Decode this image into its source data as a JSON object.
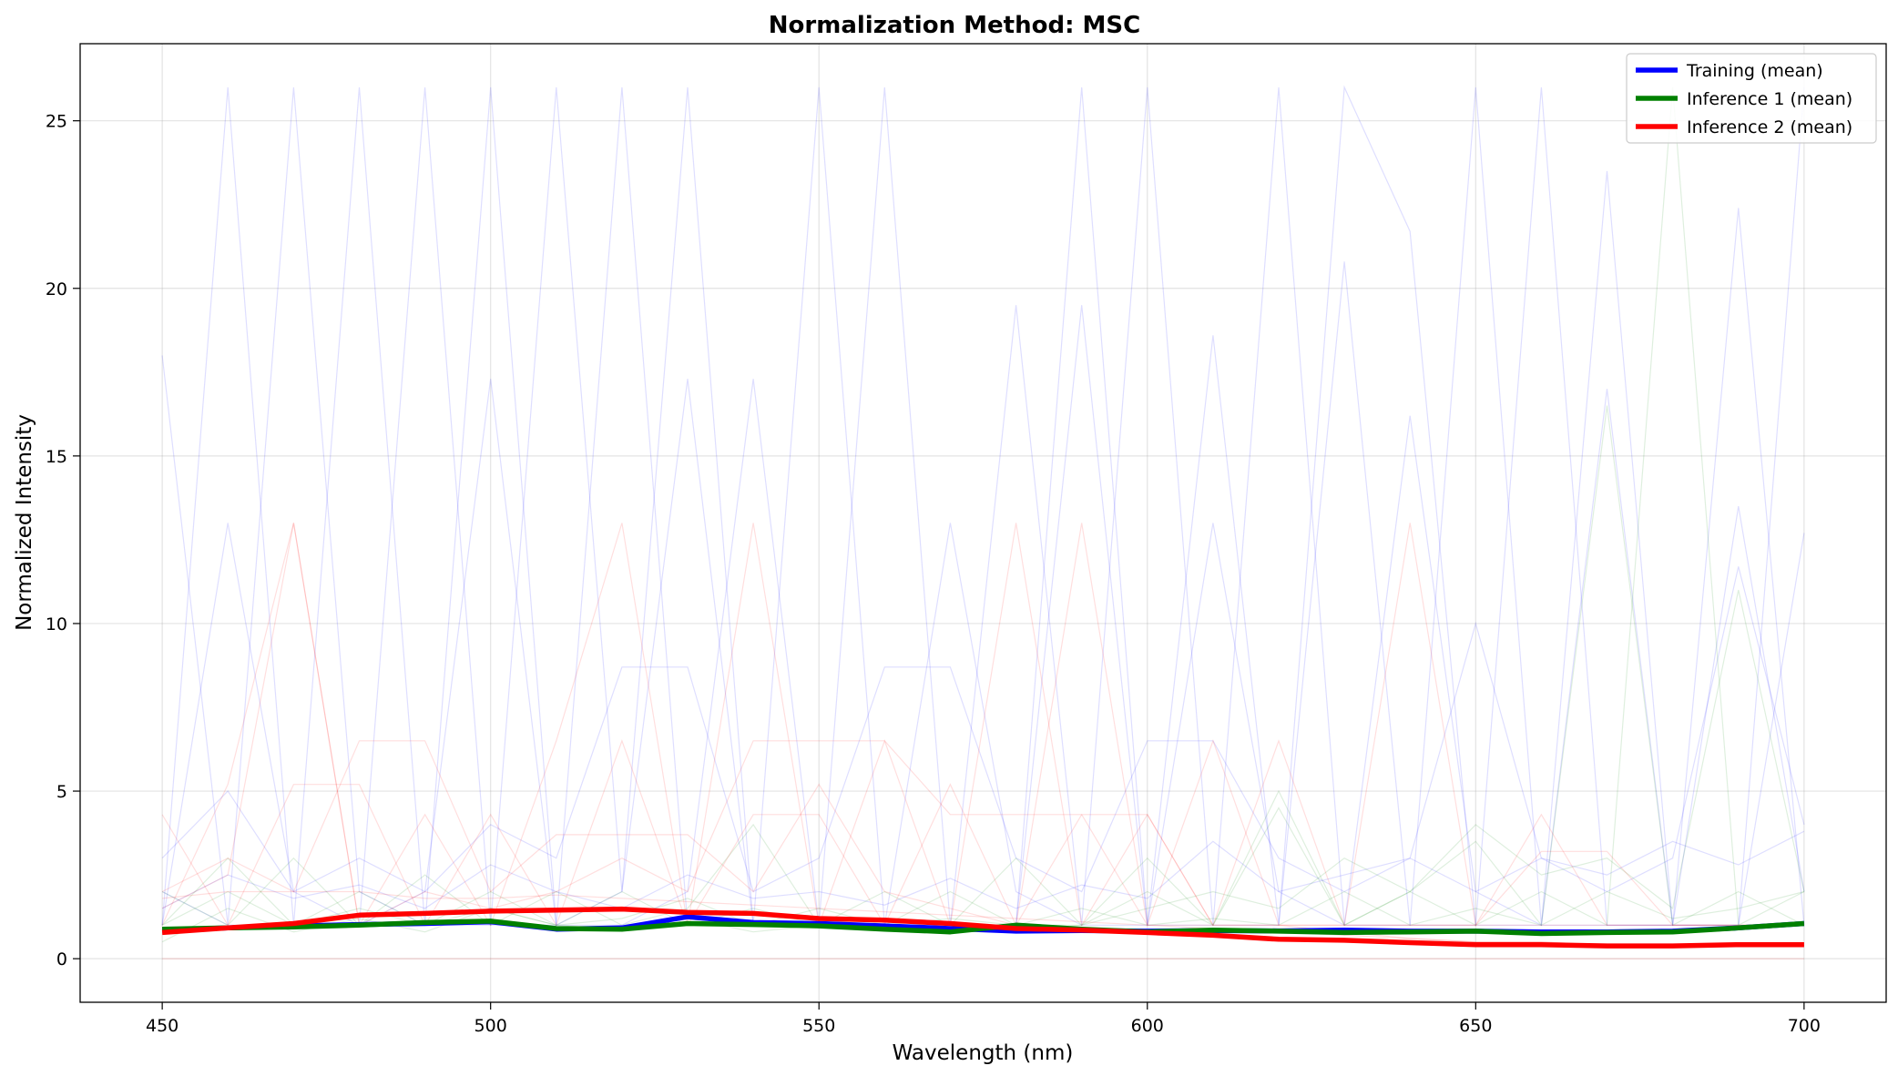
{
  "chart_data": {
    "type": "line",
    "title": "Normalization Method: MSC",
    "xlabel": "Wavelength (nm)",
    "ylabel": "Normalized Intensity",
    "xlim": [
      437.5,
      712.5
    ],
    "ylim": [
      -1.3,
      27.3
    ],
    "x_ticks": [
      450,
      500,
      550,
      600,
      650,
      700
    ],
    "y_ticks": [
      0,
      5,
      10,
      15,
      20,
      25
    ],
    "grid": true,
    "legend_position": "top-right",
    "x": [
      450,
      460,
      470,
      480,
      490,
      500,
      510,
      520,
      530,
      540,
      550,
      560,
      570,
      580,
      590,
      600,
      610,
      620,
      630,
      640,
      650,
      660,
      670,
      680,
      690,
      700
    ],
    "series": [
      {
        "name": "Training (mean)",
        "color": "#0000ff",
        "values": [
          0.85,
          0.92,
          0.98,
          1.02,
          1.05,
          1.1,
          0.88,
          0.92,
          1.25,
          1.08,
          1.05,
          0.98,
          0.9,
          0.82,
          0.84,
          0.82,
          0.84,
          0.83,
          0.85,
          0.82,
          0.82,
          0.8,
          0.8,
          0.82,
          0.92,
          1.05
        ]
      },
      {
        "name": "Inference 1 (mean)",
        "color": "#008000",
        "values": [
          0.88,
          0.92,
          0.95,
          1.0,
          1.08,
          1.12,
          0.9,
          0.88,
          1.05,
          1.02,
          0.98,
          0.88,
          0.8,
          1.0,
          0.88,
          0.8,
          0.85,
          0.82,
          0.78,
          0.8,
          0.82,
          0.75,
          0.78,
          0.8,
          0.92,
          1.05
        ]
      },
      {
        "name": "Inference 2 (mean)",
        "color": "#ff0000",
        "values": [
          0.78,
          0.92,
          1.05,
          1.3,
          1.35,
          1.42,
          1.45,
          1.48,
          1.38,
          1.35,
          1.2,
          1.15,
          1.05,
          0.9,
          0.85,
          0.78,
          0.7,
          0.58,
          0.55,
          0.48,
          0.42,
          0.42,
          0.38,
          0.38,
          0.42,
          0.42
        ]
      }
    ],
    "background_traces": [
      {
        "color": "#0000ff",
        "values": [
          18,
          1,
          26,
          2,
          1,
          26,
          1,
          2,
          26,
          1,
          26,
          1,
          1,
          1,
          26,
          1,
          1,
          1,
          26,
          21.7,
          1,
          1,
          1,
          1,
          22.4,
          1
        ]
      },
      {
        "color": "#0000ff",
        "values": [
          1,
          26,
          1,
          26,
          1,
          1,
          26,
          2,
          17.3,
          1,
          1,
          26,
          1,
          19.5,
          1,
          26,
          1,
          26,
          1,
          1,
          26,
          1,
          23.5,
          1,
          1,
          26
        ]
      },
      {
        "color": "#0000ff",
        "values": [
          2,
          1,
          1,
          1,
          26,
          1,
          1,
          26,
          1,
          1,
          1,
          1,
          1,
          1,
          19.5,
          1,
          18.6,
          1,
          20.8,
          1,
          1,
          26,
          1,
          1,
          1,
          12.7
        ]
      },
      {
        "color": "#0000ff",
        "values": [
          1,
          13,
          2,
          1,
          2,
          17.3,
          1,
          1,
          2,
          17.3,
          1,
          1,
          13,
          2,
          1,
          1,
          13,
          2,
          1,
          16.2,
          2,
          1,
          17,
          1,
          13.5,
          2
        ]
      },
      {
        "color": "#0000ff",
        "values": [
          3,
          5,
          2,
          3,
          2,
          4,
          3,
          8.7,
          8.7,
          2,
          3,
          8.7,
          8.7,
          3,
          2,
          6.5,
          6.5,
          3,
          2,
          3,
          10,
          3,
          2,
          3,
          11.7,
          4
        ]
      },
      {
        "color": "#0000ff",
        "values": [
          1.5,
          2.5,
          1.8,
          2.2,
          1.5,
          2.8,
          2,
          1.5,
          2.5,
          1.8,
          2,
          1.6,
          2.4,
          1.5,
          2.2,
          1.8,
          3.5,
          2,
          2.5,
          3,
          2,
          3,
          2.5,
          3.5,
          2.8,
          3.8
        ]
      },
      {
        "color": "#008000",
        "values": [
          1,
          2,
          1,
          1.5,
          1,
          2,
          1,
          1.2,
          1.8,
          1,
          1.5,
          1,
          1.2,
          1,
          1.5,
          1,
          1.2,
          1,
          2,
          1,
          1.5,
          1,
          2,
          1.2,
          1.5,
          2
        ]
      },
      {
        "color": "#008000",
        "values": [
          2,
          1,
          3,
          1,
          2.5,
          1,
          2,
          1,
          1.5,
          4,
          1,
          2,
          1,
          3,
          1,
          2,
          1,
          4.5,
          1,
          2,
          1,
          2,
          1,
          26,
          1,
          2
        ]
      },
      {
        "color": "#008000",
        "values": [
          1,
          3,
          1,
          2,
          1,
          1.5,
          1,
          2,
          1,
          1.5,
          1,
          1,
          2,
          1,
          1,
          3,
          1,
          5,
          1,
          2,
          3.5,
          1,
          16.5,
          1,
          2,
          1
        ]
      },
      {
        "color": "#008000",
        "values": [
          0.5,
          1.5,
          0.8,
          1.2,
          0.8,
          1.5,
          1,
          0.9,
          1.2,
          0.8,
          1,
          0.9,
          1.1,
          0.8,
          1,
          1.5,
          2,
          1.5,
          3,
          2,
          4,
          2.5,
          3,
          1.5,
          11,
          2
        ]
      },
      {
        "color": "#ff0000",
        "values": [
          1,
          5.2,
          13,
          1,
          4.3,
          1,
          6.5,
          13,
          1,
          13,
          1,
          6.5,
          1,
          13,
          1,
          4.3,
          1,
          6.5,
          1,
          13,
          1,
          4.3,
          1,
          1,
          1,
          1
        ]
      },
      {
        "color": "#ff0000",
        "values": [
          4.3,
          1,
          5.2,
          5.2,
          1,
          4.3,
          1,
          6.5,
          1,
          4.3,
          4.3,
          1,
          5.2,
          1,
          4.3,
          4.3,
          1,
          1,
          1,
          1,
          1,
          1,
          1,
          1,
          1,
          1
        ]
      },
      {
        "color": "#ff0000",
        "values": [
          2,
          3,
          2,
          6.5,
          6.5,
          2,
          3.7,
          3.7,
          3.7,
          2,
          5.2,
          2,
          1.5,
          1,
          13,
          1,
          1,
          1,
          1,
          1,
          1,
          3.2,
          3.2,
          1,
          1,
          1
        ]
      },
      {
        "color": "#ff0000",
        "values": [
          1.5,
          2.5,
          13,
          1,
          2,
          1.5,
          2,
          3,
          2,
          6.5,
          6.5,
          6.5,
          4.3,
          4.3,
          4.3,
          1,
          6.5,
          1,
          0.8,
          0.6,
          0.5,
          0.5,
          0.4,
          0.4,
          0.4,
          0.4
        ]
      },
      {
        "color": "#ff0000",
        "values": [
          1.8,
          2,
          2,
          2,
          1.8,
          1.8,
          1.9,
          1.8,
          1.7,
          1.6,
          1.5,
          1.4,
          1.3,
          1.2,
          1.1,
          1,
          0.9,
          0.8,
          0.7,
          0.6,
          0.5,
          0.5,
          0.4,
          0.4,
          0.4,
          0.4
        ]
      },
      {
        "color": "#ff0000",
        "values": [
          0,
          0,
          0,
          0,
          0,
          0,
          0,
          0,
          0,
          0,
          0,
          0,
          0,
          0,
          0,
          0,
          0,
          0,
          0,
          0,
          0,
          0,
          0,
          0,
          0,
          0
        ]
      }
    ]
  }
}
